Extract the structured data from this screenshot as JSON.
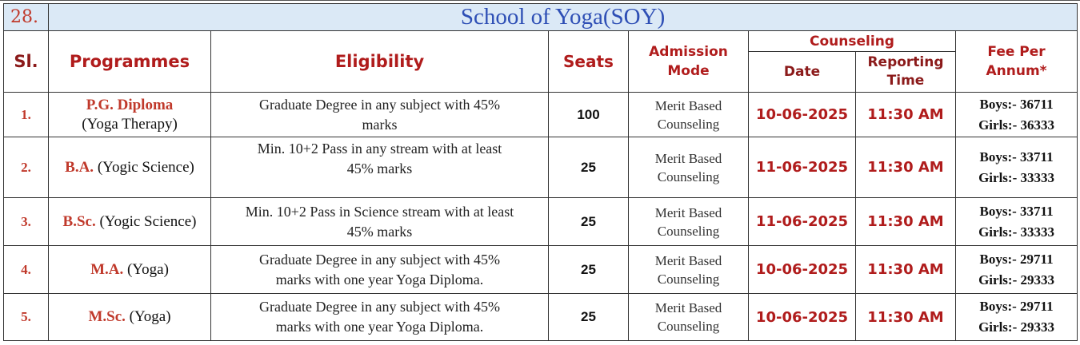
{
  "section_number": "28.",
  "section_title": "School of Yoga(SOY)",
  "headers": {
    "sl": "Sl.",
    "programmes": "Programmes",
    "eligibility": "Eligibility",
    "seats": "Seats",
    "admission_mode_line1": "Admission",
    "admission_mode_line2": "Mode",
    "counseling": "Counseling",
    "date": "Date",
    "reporting_line1": "Reporting",
    "reporting_line2": "Time",
    "fee_line1": "Fee Per",
    "fee_line2": "Annum*"
  },
  "rows": [
    {
      "sl": "1.",
      "prog_bold": "P.G. Diploma",
      "prog_rest": "(Yoga Therapy)",
      "elig_line1": "Graduate Degree in any subject with 45%",
      "elig_line2": "marks",
      "seats": "100",
      "mode_line1": "Merit Based",
      "mode_line2": "Counseling",
      "date": "10-06-2025",
      "time": "11:30 AM",
      "fee_boys": "Boys:- 36711",
      "fee_girls": "Girls:- 36333"
    },
    {
      "sl": "2.",
      "prog_bold": "B.A.",
      "prog_rest": "(Yogic Science)",
      "elig_line1": "Min. 10+2 Pass in any stream with at least",
      "elig_line2": "45% marks",
      "seats": "25",
      "mode_line1": "Merit Based",
      "mode_line2": "Counseling",
      "date": "11-06-2025",
      "time": "11:30 AM",
      "fee_boys": "Boys:- 33711",
      "fee_girls": "Girls:- 33333"
    },
    {
      "sl": "3.",
      "prog_bold": "B.Sc.",
      "prog_rest": "(Yogic Science)",
      "elig_line1": "Min. 10+2 Pass in Science stream with at least",
      "elig_line2": "45% marks",
      "seats": "25",
      "mode_line1": "Merit Based",
      "mode_line2": "Counseling",
      "date": "11-06-2025",
      "time": "11:30 AM",
      "fee_boys": "Boys:- 33711",
      "fee_girls": "Girls:- 33333"
    },
    {
      "sl": "4.",
      "prog_bold": "M.A.",
      "prog_rest": "(Yoga)",
      "elig_line1": "Graduate Degree in any subject with 45%",
      "elig_line2": "marks with one year Yoga Diploma.",
      "seats": "25",
      "mode_line1": "Merit Based",
      "mode_line2": "Counseling",
      "date": "10-06-2025",
      "time": "11:30 AM",
      "fee_boys": "Boys:- 29711",
      "fee_girls": "Girls:- 29333"
    },
    {
      "sl": "5.",
      "prog_bold": "M.Sc.",
      "prog_rest": "(Yoga)",
      "elig_line1": "Graduate Degree in any subject with 45%",
      "elig_line2": "marks with one year Yoga Diploma.",
      "seats": "25",
      "mode_line1": "Merit Based",
      "mode_line2": "Counseling",
      "date": "10-06-2025",
      "time": "11:30 AM",
      "fee_boys": "Boys:- 29711",
      "fee_girls": "Girls:- 29333"
    }
  ]
}
